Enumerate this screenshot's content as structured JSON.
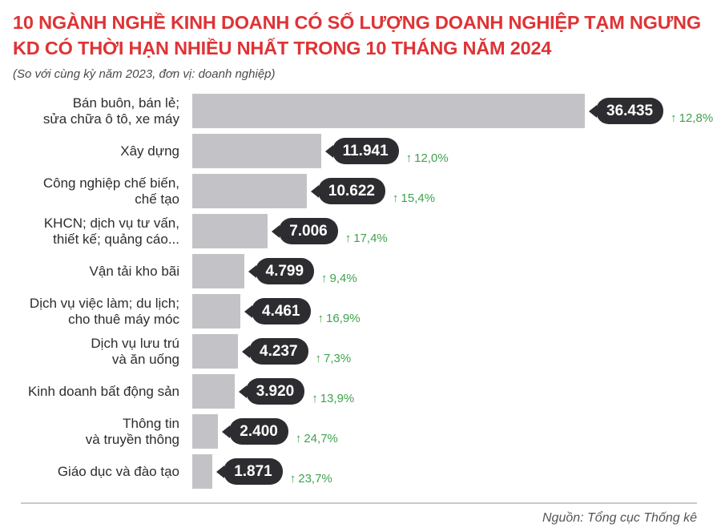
{
  "header": {
    "title": "10 NGÀNH NGHỀ KINH DOANH CÓ SỐ LƯỢNG DOANH NGHIỆP TẠM NGƯNG\nKD CÓ THỜI HẠN NHIỀU NHẤT TRONG 10 THÁNG NĂM 2024",
    "subtitle": "(So với cùng kỳ năm 2023, đơn vị: doanh nghiệp)"
  },
  "chart_data": {
    "type": "bar",
    "orientation": "horizontal",
    "unit": "doanh nghiệp",
    "comparison_note": "So với cùng kỳ năm 2023",
    "categories": [
      "Bán buôn, bán lẻ;\nsửa chữa ô tô, xe máy",
      "Xây dựng",
      "Công nghiệp chế biến,\nchế tạo",
      "KHCN; dịch vụ tư vấn,\nthiết kế; quảng cáo...",
      "Vận tải kho bãi",
      "Dịch vụ việc làm; du lịch;\ncho thuê máy móc",
      "Dịch vụ lưu trú\nvà ăn uống",
      "Kinh doanh bất động sản",
      "Thông tin\nvà truyền thông",
      "Giáo dục và đào tạo"
    ],
    "values": [
      36435,
      11941,
      10622,
      7006,
      4799,
      4461,
      4237,
      3920,
      2400,
      1871
    ],
    "value_labels": [
      "36.435",
      "11.941",
      "10.622",
      "7.006",
      "4.799",
      "4.461",
      "4.237",
      "3.920",
      "2.400",
      "1.871"
    ],
    "changes_pct": [
      12.8,
      12.0,
      15.4,
      17.4,
      9.4,
      16.9,
      7.3,
      13.9,
      24.7,
      23.7
    ],
    "change_labels": [
      "12,8%",
      "12,0%",
      "15,4%",
      "17,4%",
      "9,4%",
      "16,9%",
      "7,3%",
      "13,9%",
      "24,7%",
      "23,7%"
    ],
    "change_direction": "up",
    "xlim": [
      0,
      36435
    ],
    "grid": false,
    "legend": "none"
  },
  "footer": {
    "source": "Nguồn: Tổng cục Thống kê"
  },
  "colors": {
    "title_red": "#df3335",
    "bar_gray": "#c3c3c7",
    "badge_dark": "#2d2d31",
    "green": "#3fa34d",
    "text_dark": "#2d2d2d",
    "muted_text": "#4a4a4a",
    "divider": "#c9c9c9"
  },
  "icons": {
    "up_arrow": "↑"
  }
}
